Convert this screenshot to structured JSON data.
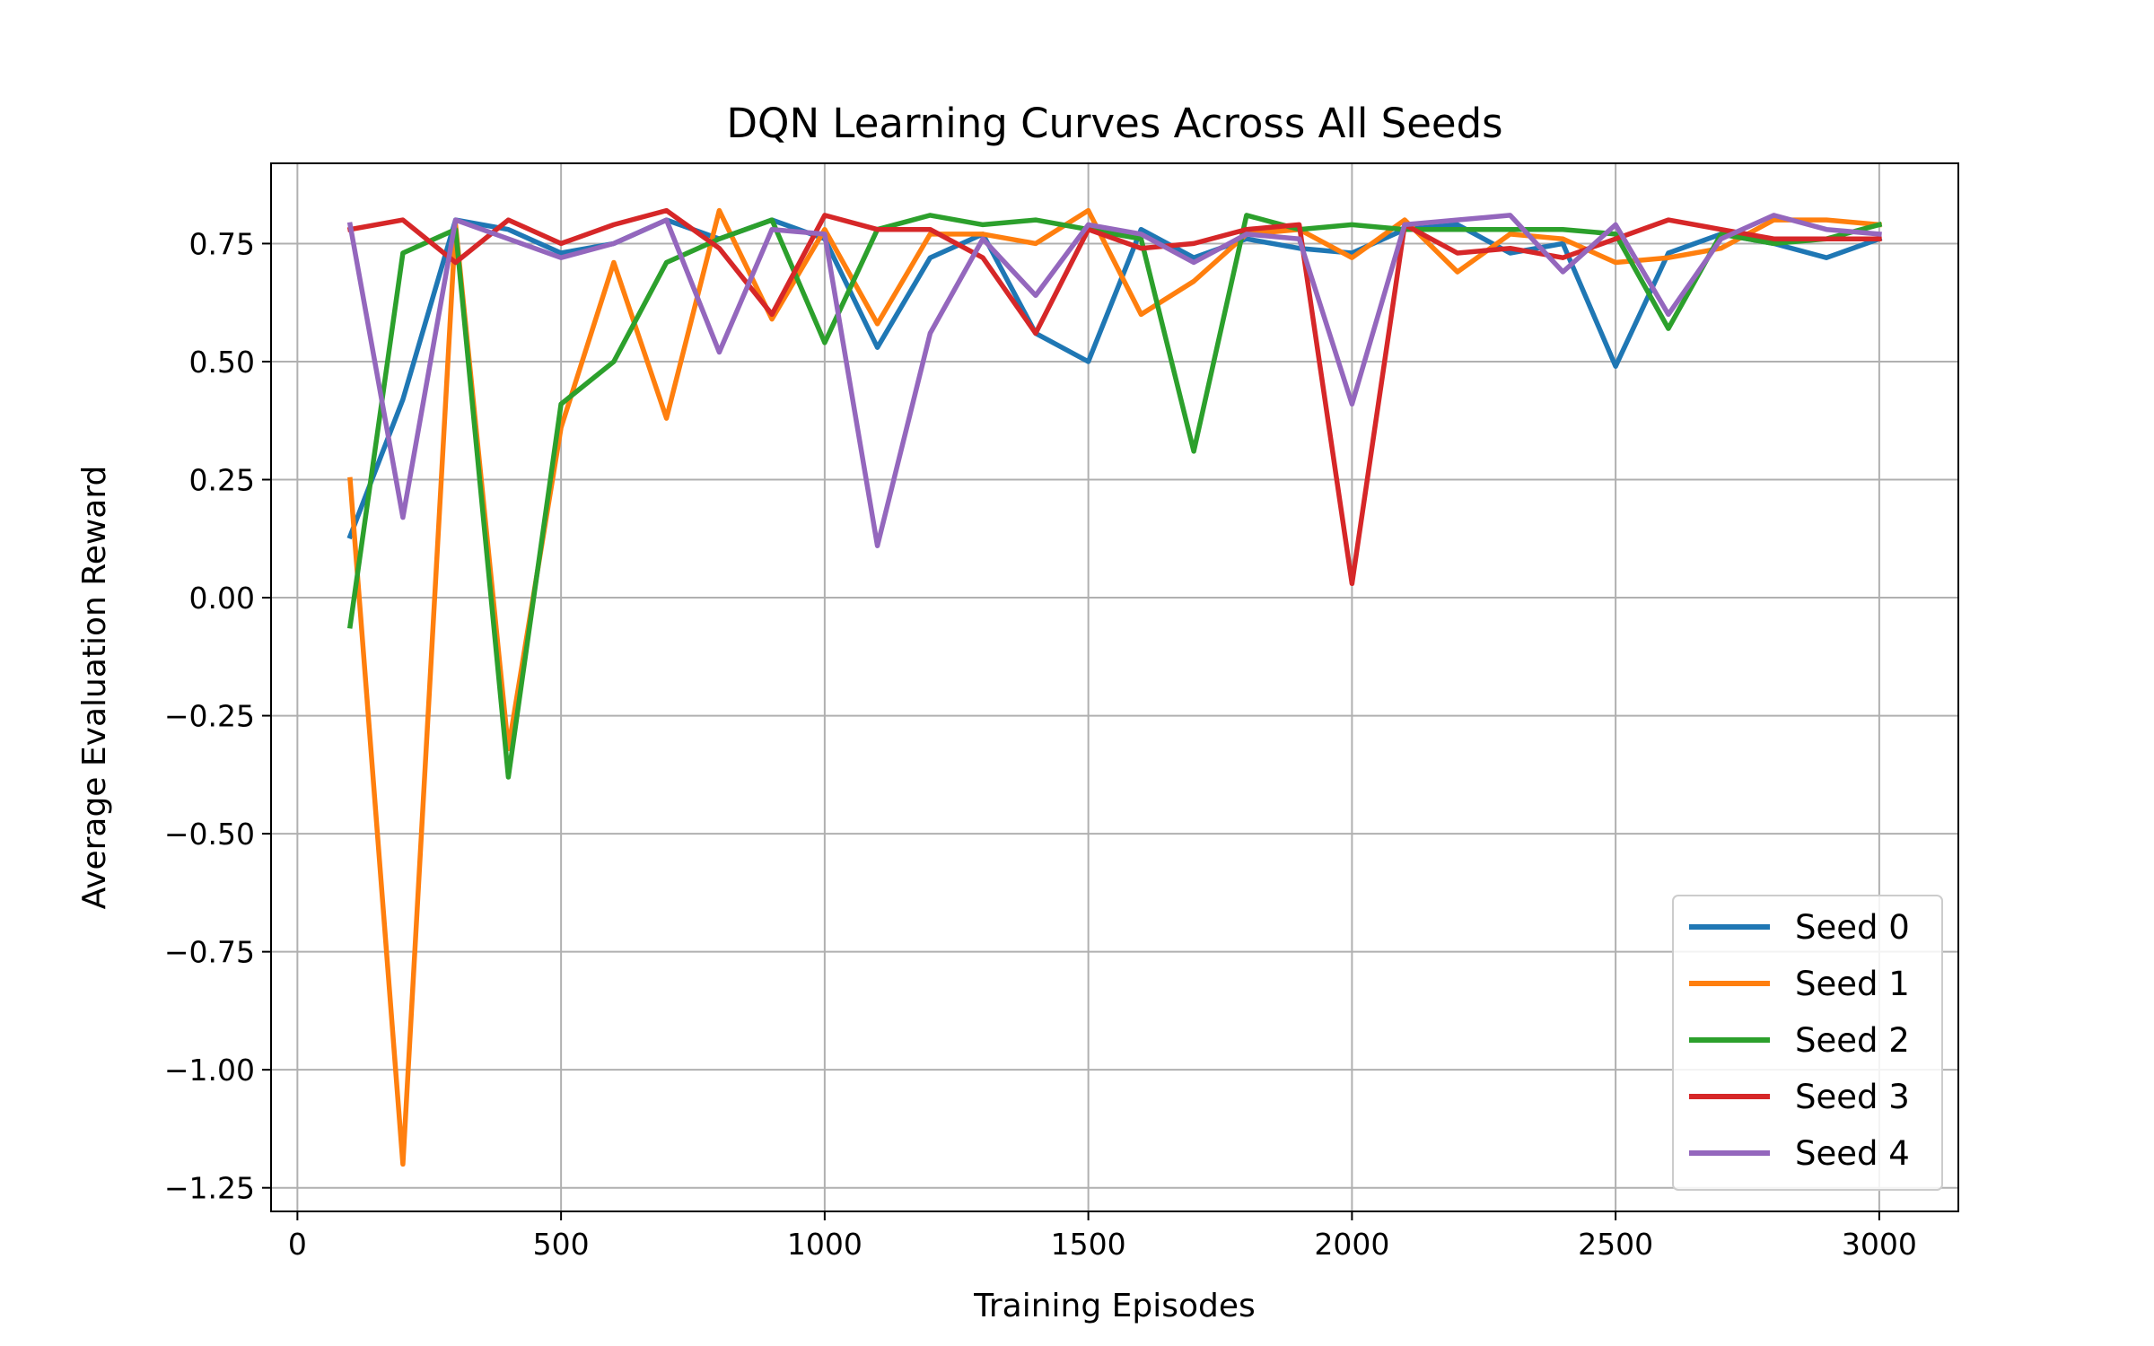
{
  "chart_data": {
    "type": "line",
    "title": "DQN Learning Curves Across All Seeds",
    "xlabel": "Training Episodes",
    "ylabel": "Average Evaluation Reward",
    "xlim": [
      -50,
      3150
    ],
    "ylim": [
      -1.3,
      0.92
    ],
    "xticks": [
      0,
      500,
      1000,
      1500,
      2000,
      2500,
      3000
    ],
    "xtick_labels": [
      "0",
      "500",
      "1000",
      "1500",
      "2000",
      "2500",
      "3000"
    ],
    "yticks": [
      -1.25,
      -1.0,
      -0.75,
      -0.5,
      -0.25,
      0.0,
      0.25,
      0.5,
      0.75
    ],
    "ytick_labels": [
      "−1.25",
      "−1.00",
      "−0.75",
      "−0.50",
      "−0.25",
      "0.00",
      "0.25",
      "0.50",
      "0.75"
    ],
    "grid": true,
    "legend_position": "lower-right",
    "x": [
      100,
      200,
      300,
      400,
      500,
      600,
      700,
      800,
      900,
      1000,
      1100,
      1200,
      1300,
      1400,
      1500,
      1600,
      1700,
      1800,
      1900,
      2000,
      2100,
      2200,
      2300,
      2400,
      2500,
      2600,
      2700,
      2800,
      2900,
      3000
    ],
    "series": [
      {
        "name": "Seed 0",
        "color": "#1f77b4",
        "values": [
          0.13,
          0.42,
          0.8,
          0.78,
          0.73,
          0.75,
          0.8,
          0.76,
          0.8,
          0.76,
          0.53,
          0.72,
          0.77,
          0.56,
          0.5,
          0.78,
          0.72,
          0.76,
          0.74,
          0.73,
          0.78,
          0.79,
          0.73,
          0.75,
          0.49,
          0.73,
          0.77,
          0.75,
          0.72,
          0.76
        ]
      },
      {
        "name": "Seed 1",
        "color": "#ff7f0e",
        "values": [
          0.25,
          -1.2,
          0.79,
          -0.32,
          0.36,
          0.71,
          0.38,
          0.82,
          0.59,
          0.78,
          0.58,
          0.77,
          0.77,
          0.75,
          0.82,
          0.6,
          0.67,
          0.77,
          0.78,
          0.72,
          0.8,
          0.69,
          0.77,
          0.76,
          0.71,
          0.72,
          0.74,
          0.8,
          0.8,
          0.79
        ]
      },
      {
        "name": "Seed 2",
        "color": "#2ca02c",
        "values": [
          -0.06,
          0.73,
          0.78,
          -0.38,
          0.41,
          0.5,
          0.71,
          0.76,
          0.8,
          0.54,
          0.78,
          0.81,
          0.79,
          0.8,
          0.78,
          0.76,
          0.31,
          0.81,
          0.78,
          0.79,
          0.78,
          0.78,
          0.78,
          0.78,
          0.77,
          0.57,
          0.77,
          0.75,
          0.76,
          0.79
        ]
      },
      {
        "name": "Seed 3",
        "color": "#d62728",
        "values": [
          0.78,
          0.8,
          0.71,
          0.8,
          0.75,
          0.79,
          0.82,
          0.74,
          0.6,
          0.81,
          0.78,
          0.78,
          0.72,
          0.56,
          0.78,
          0.74,
          0.75,
          0.78,
          0.79,
          0.03,
          0.79,
          0.73,
          0.74,
          0.72,
          0.76,
          0.8,
          0.78,
          0.76,
          0.76,
          0.76
        ]
      },
      {
        "name": "Seed 4",
        "color": "#9467bd",
        "values": [
          0.79,
          0.17,
          0.8,
          0.76,
          0.72,
          0.75,
          0.8,
          0.52,
          0.78,
          0.77,
          0.11,
          0.56,
          0.76,
          0.64,
          0.79,
          0.77,
          0.71,
          0.77,
          0.76,
          0.41,
          0.79,
          0.8,
          0.81,
          0.69,
          0.79,
          0.6,
          0.76,
          0.81,
          0.78,
          0.77
        ]
      }
    ]
  }
}
